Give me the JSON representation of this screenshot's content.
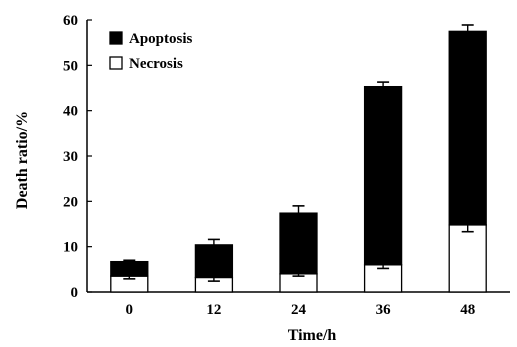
{
  "chart_data": {
    "type": "bar",
    "stacked": true,
    "categories": [
      "0",
      "12",
      "24",
      "36",
      "48"
    ],
    "series": [
      {
        "name": "Necrosis",
        "fill": "#ffffff",
        "values": [
          3.5,
          3.2,
          4.0,
          6.0,
          14.8
        ],
        "error": [
          0.6,
          0.8,
          0.5,
          0.8,
          1.5
        ]
      },
      {
        "name": "Apoptosis",
        "fill": "#000000",
        "values": [
          3.2,
          7.2,
          13.4,
          39.3,
          42.7
        ],
        "error": [
          0.3,
          1.2,
          1.6,
          1.0,
          1.4
        ]
      }
    ],
    "xlabel": "Time/h",
    "ylabel": "Death ratio/%",
    "ylim": [
      0,
      60
    ],
    "yticks": [
      0,
      10,
      20,
      30,
      40,
      50,
      60
    ],
    "grid": false,
    "legend": {
      "placement": "top-left",
      "entries": [
        {
          "label": "Apoptosis",
          "fill": "#000000"
        },
        {
          "label": "Necrosis",
          "fill": "#ffffff"
        }
      ]
    }
  }
}
